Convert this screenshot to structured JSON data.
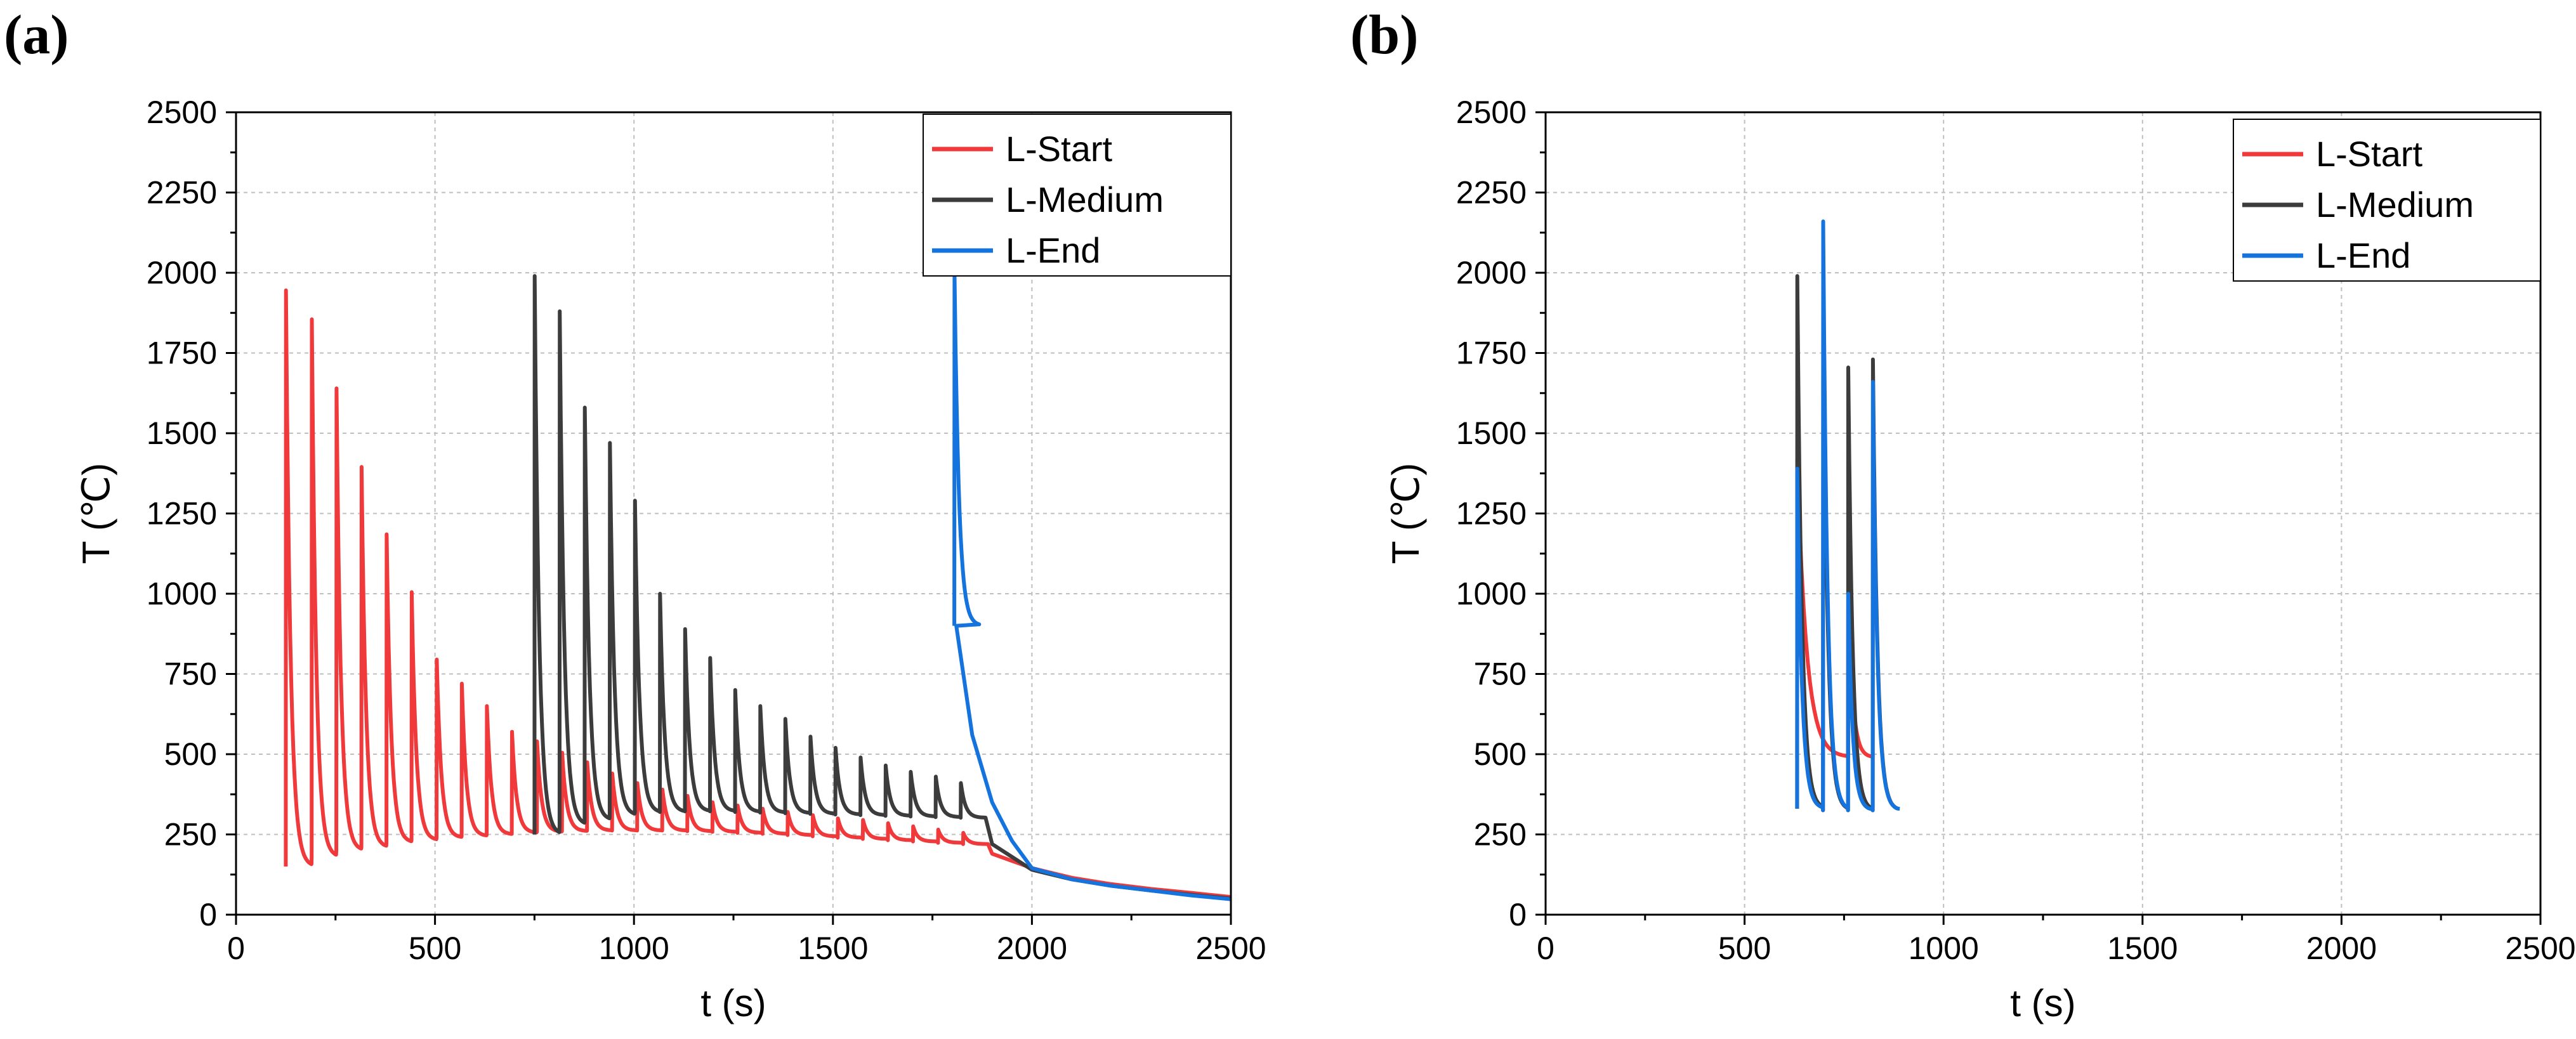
{
  "panels": [
    "(a)",
    "(b)"
  ],
  "colors": {
    "L-Start": "#f0393a",
    "L-Medium": "#3c3c3c",
    "L-End": "#1473dc",
    "grid": "#bfbfbf"
  },
  "chart_data": [
    {
      "type": "line",
      "panel": "(a)",
      "title": "",
      "xlabel": "t (s)",
      "ylabel": "T (℃)",
      "xlim": [
        0,
        2500
      ],
      "ylim": [
        0,
        2500
      ],
      "xticks": [
        0,
        500,
        1000,
        1500,
        2000,
        2500
      ],
      "yticks": [
        0,
        250,
        500,
        750,
        1000,
        1250,
        1500,
        1750,
        2000,
        2250,
        2500
      ],
      "grid": true,
      "legend": "top-right",
      "series": [
        {
          "name": "L-Start",
          "peaks_t": [
            125,
            190,
            252,
            315,
            378,
            441,
            504,
            567,
            630,
            693,
            756,
            819,
            882,
            945,
            1008,
            1071,
            1134,
            1197,
            1260,
            1323,
            1386,
            1449,
            1512,
            1575,
            1638,
            1701,
            1764,
            1827
          ],
          "peaks_T": [
            1945,
            1855,
            1640,
            1395,
            1185,
            1005,
            795,
            720,
            650,
            570,
            540,
            505,
            475,
            440,
            410,
            390,
            370,
            350,
            340,
            330,
            320,
            310,
            300,
            295,
            285,
            275,
            265,
            255
          ],
          "troughs_T": [
            150,
            180,
            200,
            210,
            225,
            232,
            240,
            245,
            250,
            255,
            258,
            260,
            262,
            262,
            262,
            262,
            260,
            258,
            255,
            252,
            248,
            244,
            240,
            236,
            232,
            228,
            224,
            220
          ],
          "cooldown_t": [
            1900,
            2000,
            2100,
            2200,
            2300,
            2400,
            2500
          ],
          "cooldown_T": [
            190,
            145,
            115,
            95,
            80,
            68,
            55
          ]
        },
        {
          "name": "L-Medium",
          "peaks_t": [
            750,
            813,
            876,
            939,
            1002,
            1065,
            1128,
            1191,
            1254,
            1317,
            1380,
            1443,
            1506,
            1569,
            1632,
            1695,
            1758,
            1821
          ],
          "peaks_T": [
            1990,
            1880,
            1580,
            1470,
            1290,
            1000,
            890,
            800,
            700,
            650,
            610,
            555,
            520,
            490,
            465,
            445,
            430,
            410
          ],
          "troughs_T": [
            250,
            280,
            295,
            310,
            318,
            320,
            322,
            322,
            320,
            318,
            316,
            314,
            312,
            310,
            308,
            306,
            304,
            302
          ],
          "cooldown_t": [
            1900,
            2000,
            2100,
            2200,
            2300,
            2400,
            2500
          ],
          "cooldown_T": [
            220,
            140,
            110,
            90,
            75,
            62,
            50
          ]
        },
        {
          "name": "L-End",
          "peaks_t": [
            1805
          ],
          "peaks_T": [
            2000
          ],
          "troughs_T": [
            900
          ],
          "cooldown_t": [
            1810,
            1850,
            1900,
            1950,
            2000,
            2100,
            2200,
            2300,
            2400,
            2500
          ],
          "cooldown_T": [
            900,
            560,
            350,
            230,
            145,
            110,
            90,
            75,
            60,
            48
          ]
        }
      ]
    },
    {
      "type": "line",
      "panel": "(b)",
      "title": "",
      "xlabel": "t (s)",
      "ylabel": "T (℃)",
      "xlim": [
        0,
        2500
      ],
      "ylim": [
        0,
        2500
      ],
      "xticks": [
        0,
        500,
        1000,
        1500,
        2000,
        2500
      ],
      "yticks": [
        0,
        250,
        500,
        750,
        1000,
        1250,
        1500,
        1750,
        2000,
        2250,
        2500
      ],
      "grid": true,
      "legend": "top-right",
      "series": [
        {
          "name": "L-Start",
          "peaks_t": [
            632,
            760
          ],
          "peaks_T": [
            1420,
            1010
          ],
          "troughs_T": [
            490,
            490
          ]
        },
        {
          "name": "L-Medium",
          "peaks_t": [
            632,
            697,
            760,
            822
          ],
          "peaks_T": [
            1990,
            1940,
            1705,
            1730
          ],
          "troughs_T": [
            330,
            325,
            325,
            325
          ]
        },
        {
          "name": "L-End",
          "peaks_t": [
            632,
            697,
            760,
            822
          ],
          "peaks_T": [
            1390,
            2160,
            1000,
            1660
          ],
          "troughs_T": [
            330,
            325,
            325,
            325
          ],
          "tail_t": [
            890
          ],
          "tail_T": [
            330
          ]
        }
      ]
    }
  ]
}
